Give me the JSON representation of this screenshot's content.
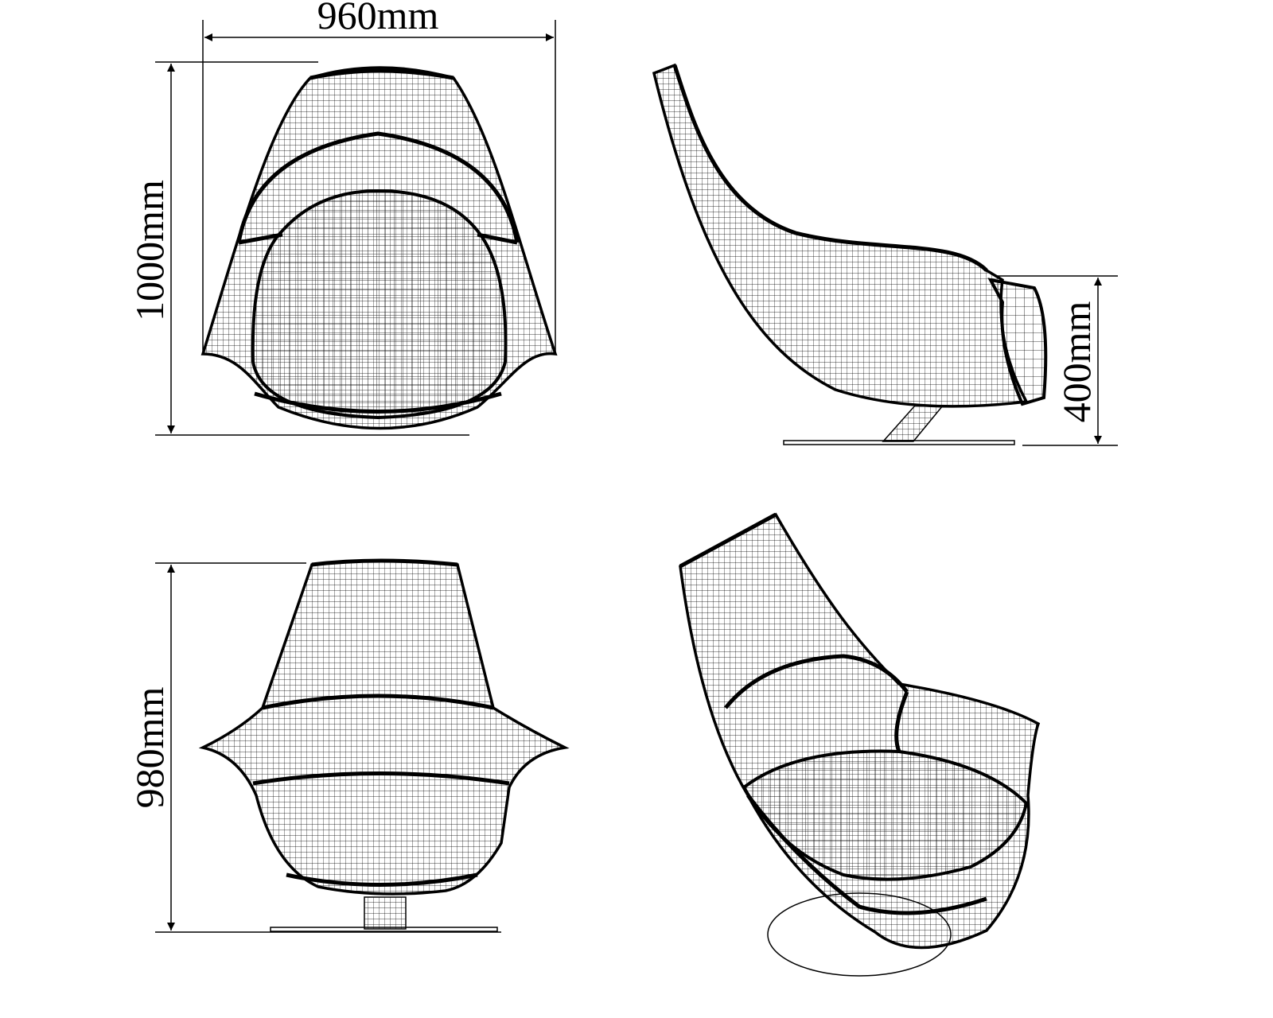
{
  "dimensions": {
    "width_front": "960mm",
    "height_front": "1000mm",
    "seat_height": "400mm",
    "height_back": "980mm"
  },
  "colors": {
    "line": "#000000",
    "background": "#ffffff"
  }
}
